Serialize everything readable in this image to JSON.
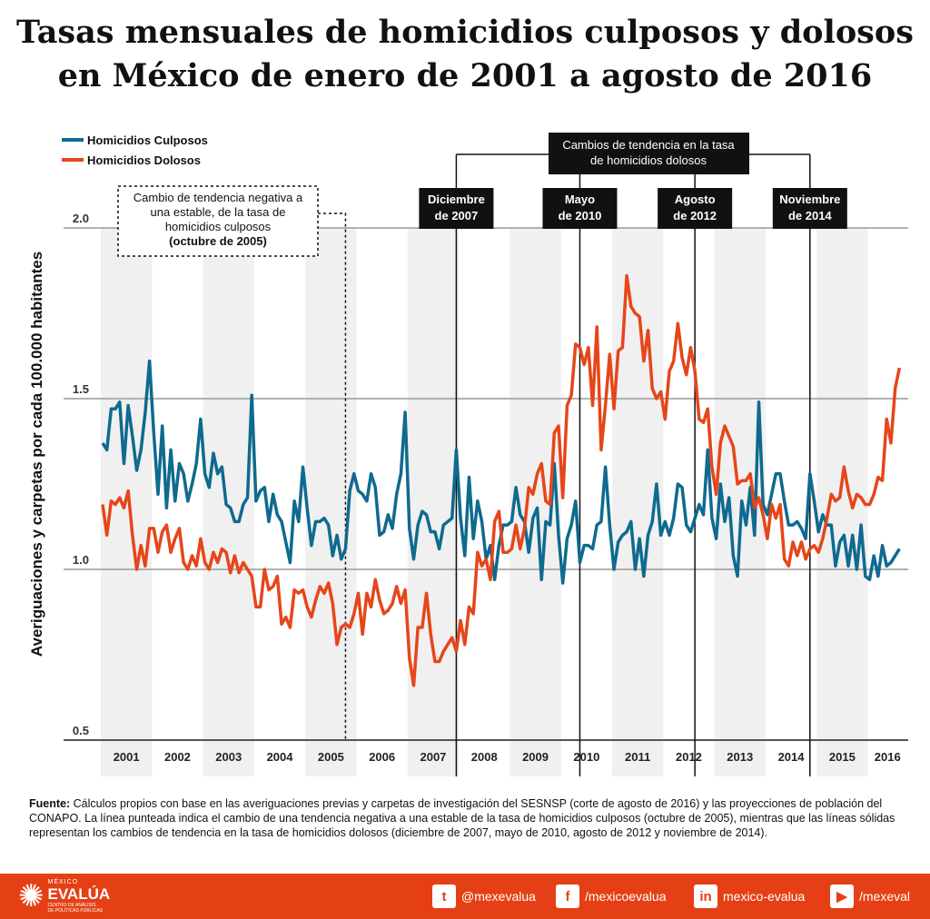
{
  "title": "Tasas mensuales de homicidios culposos y dolosos en México de enero de 2001 a agosto de 2016",
  "chart_data": {
    "type": "line",
    "title": "Tasas mensuales de homicidios culposos y dolosos en México de enero de 2001 a agosto de 2016",
    "ylabel": "Averiguaciones y carpetas por cada 100.000 habitantes",
    "xlabel": "",
    "x_start": "2001-01",
    "x_end": "2016-08",
    "x_ticks": [
      "2001",
      "2002",
      "2003",
      "2004",
      "2005",
      "2006",
      "2007",
      "2008",
      "2009",
      "2010",
      "2011",
      "2012",
      "2013",
      "2014",
      "2015",
      "2016"
    ],
    "ylim": [
      0.5,
      2.1
    ],
    "y_ticks": [
      "0.5",
      "1.0",
      "1.5",
      "2.0"
    ],
    "grid": true,
    "legend_position": "top-left",
    "series": [
      {
        "name": "Homicidios Culposos",
        "color": "#0f6a8f",
        "values": [
          1.37,
          1.35,
          1.47,
          1.47,
          1.49,
          1.31,
          1.48,
          1.39,
          1.29,
          1.35,
          1.46,
          1.61,
          1.4,
          1.22,
          1.42,
          1.18,
          1.35,
          1.2,
          1.31,
          1.28,
          1.2,
          1.25,
          1.31,
          1.44,
          1.28,
          1.24,
          1.34,
          1.28,
          1.3,
          1.19,
          1.18,
          1.14,
          1.14,
          1.19,
          1.21,
          1.51,
          1.2,
          1.23,
          1.24,
          1.14,
          1.22,
          1.16,
          1.14,
          1.08,
          1.02,
          1.2,
          1.14,
          1.3,
          1.18,
          1.07,
          1.14,
          1.14,
          1.15,
          1.13,
          1.04,
          1.1,
          1.03,
          1.06,
          1.23,
          1.28,
          1.23,
          1.22,
          1.2,
          1.28,
          1.24,
          1.1,
          1.11,
          1.16,
          1.12,
          1.22,
          1.28,
          1.46,
          1.12,
          1.03,
          1.13,
          1.17,
          1.16,
          1.11,
          1.11,
          1.06,
          1.13,
          1.14,
          1.15,
          1.35,
          1.15,
          1.04,
          1.27,
          1.09,
          1.2,
          1.14,
          1.03,
          1.07,
          0.97,
          1.07,
          1.13,
          1.13,
          1.14,
          1.24,
          1.16,
          1.14,
          1.05,
          1.15,
          1.18,
          0.97,
          1.14,
          1.13,
          1.31,
          1.1,
          0.96,
          1.09,
          1.13,
          1.2,
          1.02,
          1.07,
          1.07,
          1.06,
          1.13,
          1.14,
          1.3,
          1.13,
          1.0,
          1.08,
          1.1,
          1.11,
          1.14,
          1.0,
          1.09,
          0.98,
          1.1,
          1.14,
          1.25,
          1.1,
          1.14,
          1.1,
          1.15,
          1.25,
          1.24,
          1.13,
          1.11,
          1.15,
          1.19,
          1.16,
          1.35,
          1.15,
          1.09,
          1.25,
          1.14,
          1.21,
          1.04,
          0.98,
          1.2,
          1.13,
          1.24,
          1.1,
          1.49,
          1.19,
          1.16,
          1.22,
          1.28,
          1.28,
          1.2,
          1.13,
          1.13,
          1.14,
          1.12,
          1.09,
          1.28,
          1.2,
          1.11,
          1.16,
          1.13,
          1.13,
          1.01,
          1.08,
          1.1,
          1.01,
          1.1,
          1.0,
          1.13,
          0.98,
          0.97,
          1.04,
          0.98,
          1.07,
          1.01,
          1.02,
          1.04,
          1.06
        ]
      },
      {
        "name": "Homicidios Dolosos",
        "color": "#e5461a",
        "values": [
          1.19,
          1.1,
          1.2,
          1.19,
          1.21,
          1.18,
          1.23,
          1.1,
          1.0,
          1.07,
          1.01,
          1.12,
          1.12,
          1.05,
          1.11,
          1.13,
          1.05,
          1.09,
          1.12,
          1.02,
          1.0,
          1.04,
          1.01,
          1.09,
          1.02,
          1.0,
          1.05,
          1.02,
          1.06,
          1.05,
          0.99,
          1.04,
          0.99,
          1.02,
          1.0,
          0.98,
          0.89,
          0.89,
          1.0,
          0.94,
          0.95,
          0.98,
          0.84,
          0.86,
          0.83,
          0.94,
          0.93,
          0.94,
          0.89,
          0.86,
          0.91,
          0.95,
          0.93,
          0.96,
          0.9,
          0.78,
          0.83,
          0.84,
          0.83,
          0.87,
          0.93,
          0.81,
          0.93,
          0.89,
          0.97,
          0.91,
          0.87,
          0.88,
          0.9,
          0.95,
          0.9,
          0.94,
          0.74,
          0.66,
          0.83,
          0.83,
          0.93,
          0.81,
          0.73,
          0.73,
          0.76,
          0.78,
          0.8,
          0.76,
          0.85,
          0.78,
          0.89,
          0.87,
          1.05,
          1.01,
          1.03,
          0.97,
          1.14,
          1.17,
          1.05,
          1.05,
          1.06,
          1.13,
          1.06,
          1.12,
          1.24,
          1.22,
          1.28,
          1.31,
          1.2,
          1.19,
          1.4,
          1.42,
          1.21,
          1.48,
          1.51,
          1.66,
          1.65,
          1.6,
          1.65,
          1.48,
          1.71,
          1.35,
          1.48,
          1.63,
          1.47,
          1.64,
          1.65,
          1.86,
          1.77,
          1.75,
          1.74,
          1.61,
          1.7,
          1.53,
          1.5,
          1.52,
          1.44,
          1.58,
          1.61,
          1.72,
          1.62,
          1.57,
          1.65,
          1.58,
          1.44,
          1.43,
          1.47,
          1.3,
          1.22,
          1.37,
          1.42,
          1.39,
          1.36,
          1.25,
          1.26,
          1.26,
          1.28,
          1.18,
          1.21,
          1.16,
          1.09,
          1.19,
          1.15,
          1.19,
          1.03,
          1.01,
          1.08,
          1.04,
          1.08,
          1.03,
          1.06,
          1.07,
          1.05,
          1.09,
          1.15,
          1.22,
          1.2,
          1.21,
          1.3,
          1.23,
          1.18,
          1.22,
          1.21,
          1.19,
          1.19,
          1.22,
          1.27,
          1.26,
          1.44,
          1.37,
          1.53,
          1.59
        ]
      }
    ],
    "annotations": {
      "header": "Cambios de tendencia en la tasa de homicidios dolosos",
      "header_lines": [
        "Cambios de tendencia en la tasa",
        "de homicidios dolosos"
      ],
      "solid_lines": [
        {
          "date": "2007-12",
          "label_lines": [
            "Diciembre",
            "de 2007"
          ]
        },
        {
          "date": "2010-05",
          "label_lines": [
            "Mayo",
            "de 2010"
          ]
        },
        {
          "date": "2012-08",
          "label_lines": [
            "Agosto",
            "de 2012"
          ]
        },
        {
          "date": "2014-11",
          "label_lines": [
            "Noviembre",
            "de 2014"
          ]
        }
      ],
      "dotted_line": {
        "date": "2005-10",
        "label_lines": [
          "Cambio de tendencia negativa a",
          "una estable, de la tasa de",
          "homicidios culposos"
        ],
        "label_bold": "(octubre de 2005)"
      }
    }
  },
  "source": {
    "label": "Fuente:",
    "text": "Cálculos propios con base en las averiguaciones previas y carpetas de investigación del SESNSP (corte de agosto de 2016)  y las proyecciones de población del CONAPO. La línea punteada indica el cambio de una tendencia negativa a una estable de la tasa de homicidios culposos (octubre de 2005), mientras que las líneas sólidas representan los cambios de tendencia en la tasa de homicidios dolosos (diciembre de 2007, mayo de 2010, agosto de 2012 y noviembre de 2014)."
  },
  "footer": {
    "logo_top": "MÉXICO",
    "logo_main": "EVALÚA",
    "logo_sub1": "CENTRO DE ANÁLISIS",
    "logo_sub2": "DE POLÍTICAS PÚBLICAS",
    "social": [
      {
        "icon": "twitter-icon",
        "glyph": "t",
        "label": "@mexevalua"
      },
      {
        "icon": "facebook-icon",
        "glyph": "f",
        "label": "/mexicoevalua"
      },
      {
        "icon": "linkedin-icon",
        "glyph": "in",
        "label": "mexico-evalua"
      },
      {
        "icon": "youtube-icon",
        "glyph": "▶",
        "label": "/mexeval"
      }
    ]
  }
}
